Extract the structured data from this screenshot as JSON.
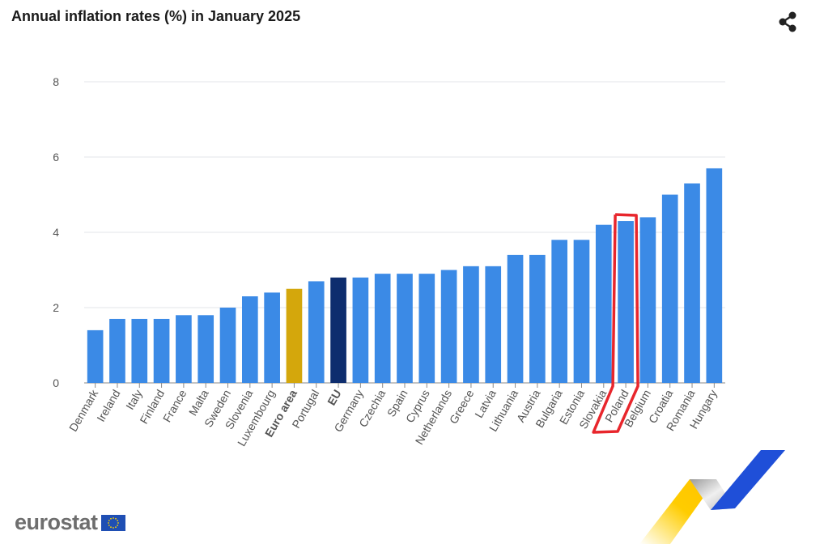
{
  "header": {
    "title": "Annual inflation rates (%) in January 2025"
  },
  "footer": {
    "brand": "eurostat"
  },
  "colors": {
    "bar": "#3b8ae6",
    "euro_area": "#d4a70c",
    "eu": "#0e2d6e",
    "highlight": "#e8262c"
  },
  "icons": {
    "share": "share-icon",
    "flag": "eu-flag-icon"
  },
  "chart_data": {
    "type": "bar",
    "title": "Annual inflation rates (%) in January 2025",
    "xlabel": "",
    "ylabel": "",
    "ylim": [
      0,
      8
    ],
    "yticks": [
      0,
      2,
      4,
      6,
      8
    ],
    "grid": true,
    "categories": [
      "Denmark",
      "Ireland",
      "Italy",
      "Finland",
      "France",
      "Malta",
      "Sweden",
      "Slovenia",
      "Luxembourg",
      "Euro area",
      "Portugal",
      "EU",
      "Germany",
      "Czechia",
      "Spain",
      "Cyprus",
      "Netherlands",
      "Greece",
      "Latvia",
      "Lithuania",
      "Austria",
      "Bulgaria",
      "Estonia",
      "Slovakia",
      "Poland",
      "Belgium",
      "Croatia",
      "Romania",
      "Hungary"
    ],
    "values": [
      1.4,
      1.7,
      1.7,
      1.7,
      1.8,
      1.8,
      2.0,
      2.3,
      2.4,
      2.5,
      2.7,
      2.8,
      2.8,
      2.9,
      2.9,
      2.9,
      3.0,
      3.1,
      3.1,
      3.4,
      3.4,
      3.8,
      3.8,
      4.2,
      4.3,
      4.4,
      5.0,
      5.3,
      5.7
    ],
    "bold_categories": [
      "Euro area",
      "EU"
    ],
    "highlighted": [
      "Poland"
    ]
  }
}
